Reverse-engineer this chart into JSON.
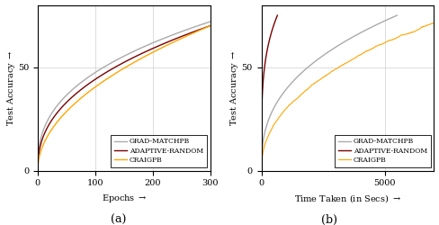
{
  "left_plot": {
    "xlabel": "Epochs $\\rightarrow$",
    "ylabel": "Test Accuracy $\\rightarrow$",
    "subtitle": "(a)",
    "xlim": [
      0,
      300
    ],
    "ylim": [
      0,
      80
    ],
    "xticks": [
      0,
      100,
      200,
      300
    ],
    "xtick_labels": [
      "0",
      "100",
      "200",
      "300"
    ],
    "yticks": [
      0,
      50
    ],
    "ytick_labels": [
      "0",
      "50"
    ]
  },
  "right_plot": {
    "xlabel": "Time Taken (in Secs) $\\rightarrow$",
    "ylabel": "Test Accuracy $\\rightarrow$",
    "subtitle": "(b)",
    "xlim": [
      0,
      7000
    ],
    "ylim": [
      0,
      80
    ],
    "xticks": [
      0,
      5000
    ],
    "xtick_labels": [
      "0",
      "5000"
    ],
    "yticks": [
      0,
      50
    ],
    "ytick_labels": [
      "0",
      "50"
    ]
  },
  "legend_labels": [
    "GRAD-MATCHPB",
    "ADAPTIVE-RANDOM",
    "CRAIGPB"
  ],
  "legend_colors": [
    "#aaaaaa",
    "#7a0000",
    "#FFA500"
  ],
  "background_color": "#ffffff",
  "grid_color": "#d0d0d0",
  "subtitle_fontsize": 9,
  "label_fontsize": 7,
  "tick_fontsize": 7,
  "legend_fontsize": 5.5
}
